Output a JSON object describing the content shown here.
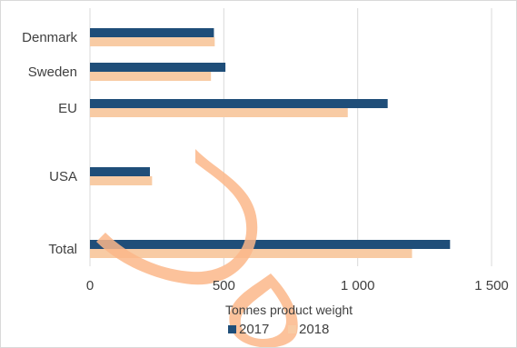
{
  "chart_data": {
    "type": "bar",
    "orientation": "horizontal",
    "categories": [
      "Denmark",
      "Sweden",
      "EU",
      "USA",
      "Total"
    ],
    "series": [
      {
        "name": "2017",
        "values": [
          463,
          506,
          1112,
          224,
          1345
        ],
        "color": "#1f4e79"
      },
      {
        "name": "2018",
        "values": [
          466,
          452,
          963,
          232,
          1203
        ],
        "color": "#f8cba4"
      }
    ],
    "xlabel": "Tonnes product weight",
    "ylabel": "",
    "xlim": [
      0,
      1500
    ],
    "x_ticks": [
      0,
      500,
      1000,
      1500
    ],
    "x_tick_labels": [
      "0",
      "500",
      "1 000",
      "1 500"
    ],
    "grid": true,
    "legend_position": "bottom",
    "watermark": "orange drop outline"
  }
}
